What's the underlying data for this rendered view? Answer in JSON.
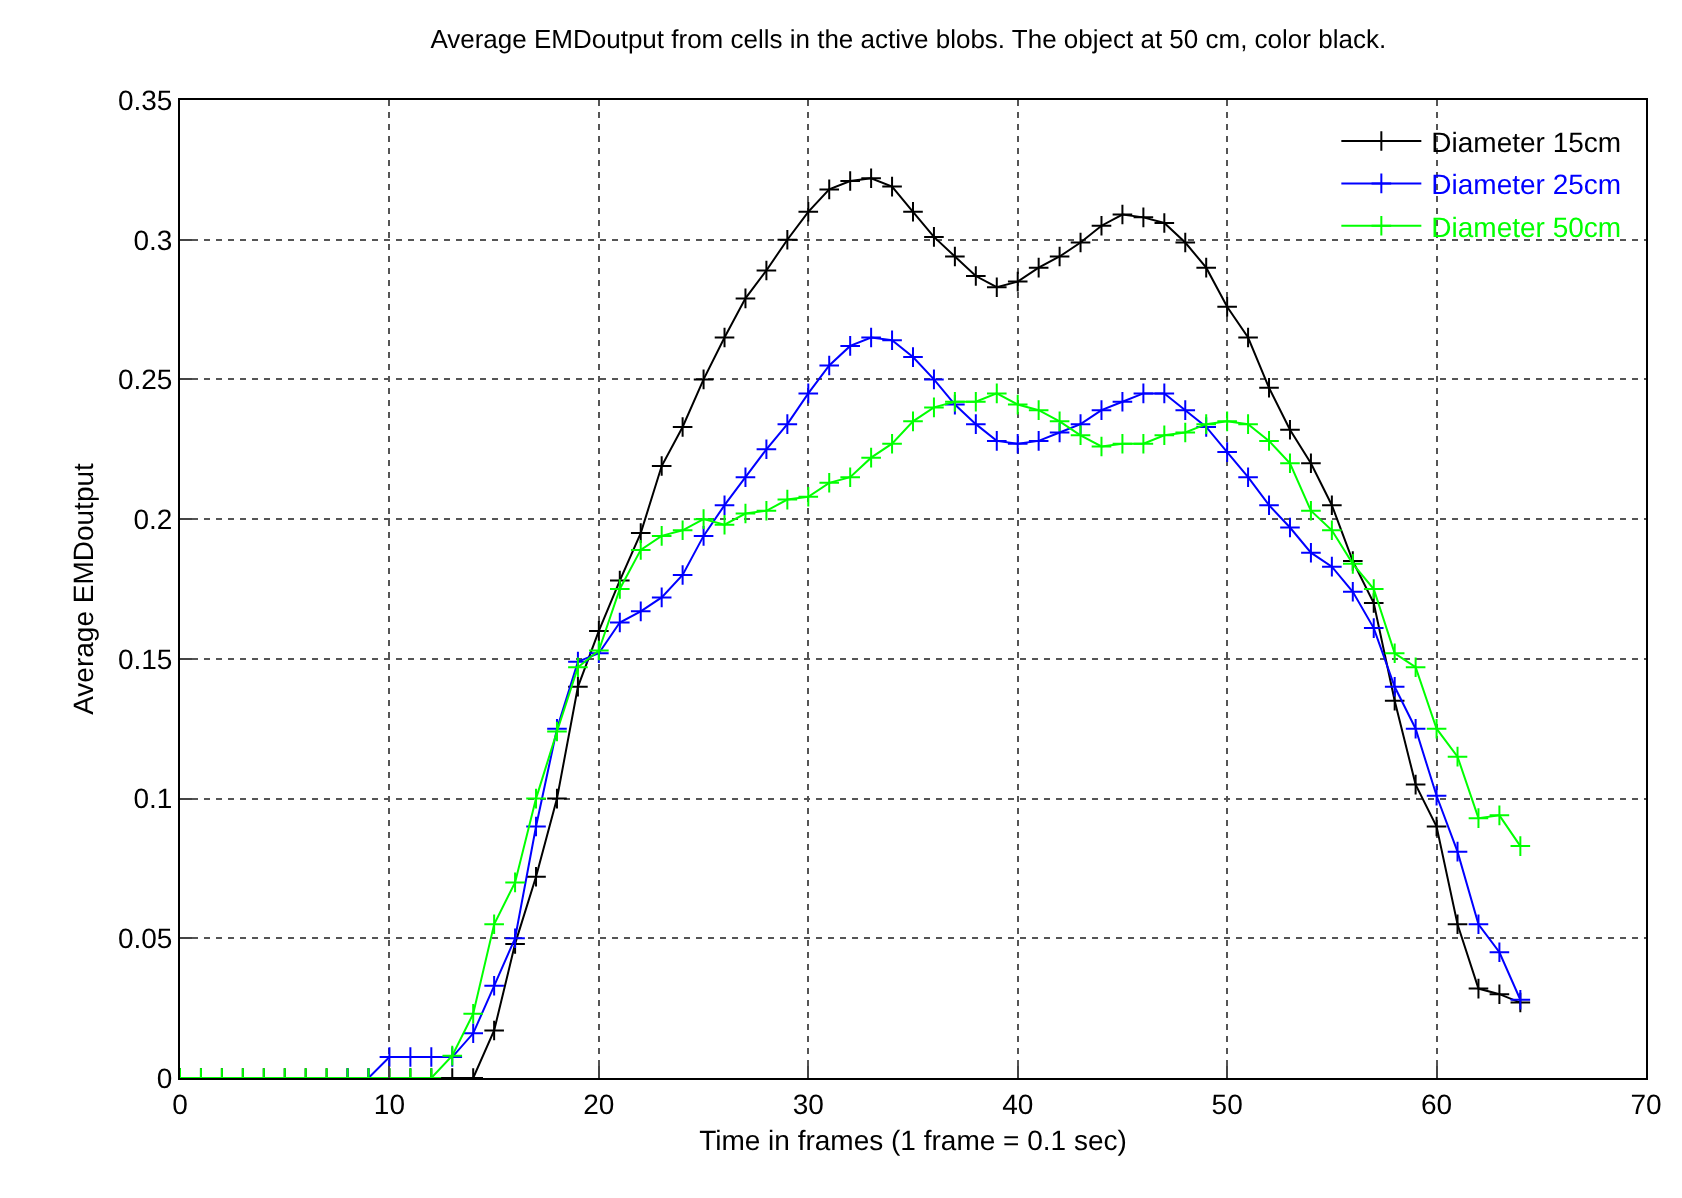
{
  "chart_data": {
    "type": "line",
    "title": "Average EMDoutput from cells in the active blobs. The object at 50 cm, color black.",
    "xlabel": "Time in frames (1 frame = 0.1 sec)",
    "ylabel": "Average EMDoutput",
    "x": [
      0,
      1,
      2,
      3,
      4,
      5,
      6,
      7,
      8,
      9,
      10,
      11,
      12,
      13,
      14,
      15,
      16,
      17,
      18,
      19,
      20,
      21,
      22,
      23,
      24,
      25,
      26,
      27,
      28,
      29,
      30,
      31,
      32,
      33,
      34,
      35,
      36,
      37,
      38,
      39,
      40,
      41,
      42,
      43,
      44,
      45,
      46,
      47,
      48,
      49,
      50,
      51,
      52,
      53,
      54,
      55,
      56,
      57,
      58,
      59,
      60,
      61,
      62,
      63,
      64
    ],
    "series": [
      {
        "name": "Diameter 15cm",
        "color": "#000000",
        "values": [
          0,
          0,
          0,
          0,
          0,
          0,
          0,
          0,
          0,
          0,
          0,
          0,
          0,
          0,
          0,
          0.017,
          0.048,
          0.072,
          0.1,
          0.14,
          0.16,
          0.178,
          0.195,
          0.219,
          0.233,
          0.25,
          0.265,
          0.279,
          0.289,
          0.3,
          0.31,
          0.318,
          0.321,
          0.322,
          0.319,
          0.31,
          0.301,
          0.294,
          0.287,
          0.283,
          0.285,
          0.29,
          0.294,
          0.299,
          0.305,
          0.309,
          0.308,
          0.306,
          0.299,
          0.29,
          0.276,
          0.265,
          0.247,
          0.232,
          0.22,
          0.205,
          0.185,
          0.17,
          0.135,
          0.105,
          0.09,
          0.055,
          0.032,
          0.03,
          0.027
        ]
      },
      {
        "name": "Diameter 25cm",
        "color": "#0000ff",
        "values": [
          null,
          null,
          null,
          null,
          null,
          null,
          null,
          null,
          0,
          0,
          0.0075,
          0.0075,
          0.0075,
          0.0075,
          0.016,
          0.033,
          0.05,
          0.09,
          0.125,
          0.149,
          0.152,
          0.163,
          0.167,
          0.172,
          0.18,
          0.194,
          0.205,
          0.215,
          0.225,
          0.234,
          0.245,
          0.255,
          0.262,
          0.265,
          0.264,
          0.258,
          0.25,
          0.241,
          0.234,
          0.228,
          0.227,
          0.228,
          0.231,
          0.234,
          0.239,
          0.242,
          0.245,
          0.245,
          0.239,
          0.233,
          0.224,
          0.215,
          0.205,
          0.197,
          0.188,
          0.183,
          0.174,
          0.161,
          0.14,
          0.125,
          0.101,
          0.081,
          0.055,
          0.045,
          0.028
        ]
      },
      {
        "name": "Diameter 50cm",
        "color": "#00ff00",
        "values": [
          0,
          0,
          0,
          0,
          0,
          0,
          0,
          0,
          0,
          0,
          0,
          0,
          0,
          0.008,
          0.023,
          0.055,
          0.07,
          0.1,
          0.124,
          0.147,
          0.153,
          0.175,
          0.189,
          0.194,
          0.196,
          0.2,
          0.198,
          0.202,
          0.203,
          0.207,
          0.208,
          0.213,
          0.215,
          0.222,
          0.227,
          0.235,
          0.24,
          0.242,
          0.242,
          0.245,
          0.241,
          0.239,
          0.235,
          0.23,
          0.226,
          0.227,
          0.227,
          0.23,
          0.231,
          0.234,
          0.235,
          0.234,
          0.228,
          0.22,
          0.203,
          0.196,
          0.184,
          0.175,
          0.152,
          0.147,
          0.125,
          0.115,
          0.093,
          0.094,
          0.083
        ]
      }
    ],
    "xlim": [
      0,
      70
    ],
    "xticks": [
      0,
      10,
      20,
      30,
      40,
      50,
      60,
      70
    ],
    "ylim": [
      0,
      0.35
    ],
    "yticks": [
      0,
      0.05,
      0.1,
      0.15,
      0.2,
      0.25,
      0.3,
      0.35
    ],
    "grid": true,
    "legend": "top right",
    "marker": "cross",
    "line_style": "solid"
  }
}
